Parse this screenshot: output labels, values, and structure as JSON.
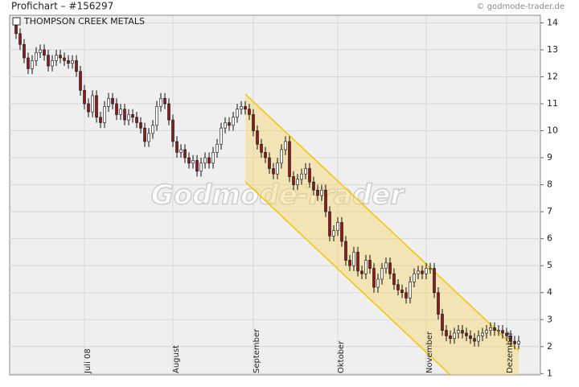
{
  "chart_data": {
    "type": "candlestick",
    "title": "Profichart – #156297",
    "source": "© godmode-trader.de",
    "watermark": "Godmode-Trader",
    "legend": "THOMPSON CREEK METALS",
    "up_color": "#ffffff",
    "down_color": "#8b1a1a",
    "ylim": [
      0.95,
      14.25
    ],
    "yticks": [
      1,
      2,
      3,
      4,
      5,
      6,
      7,
      8,
      9,
      10,
      11,
      12,
      13,
      14
    ],
    "grid": true,
    "categories": [
      null,
      null,
      null,
      null,
      null,
      null,
      null,
      null,
      null,
      null,
      null,
      null,
      null,
      null,
      null,
      null,
      null,
      "Juli 08",
      null,
      null,
      null,
      null,
      null,
      null,
      null,
      null,
      null,
      null,
      null,
      null,
      null,
      null,
      null,
      null,
      null,
      null,
      null,
      null,
      null,
      "August",
      null,
      null,
      null,
      null,
      null,
      null,
      null,
      null,
      null,
      null,
      null,
      null,
      null,
      null,
      null,
      null,
      null,
      null,
      null,
      "September",
      null,
      null,
      null,
      null,
      null,
      null,
      null,
      null,
      null,
      null,
      null,
      null,
      null,
      null,
      null,
      null,
      null,
      null,
      null,
      null,
      "Oktober",
      null,
      null,
      null,
      null,
      null,
      null,
      null,
      null,
      null,
      null,
      null,
      null,
      null,
      null,
      null,
      null,
      null,
      null,
      null,
      null,
      null,
      "November",
      null,
      null,
      null,
      null,
      null,
      null,
      null,
      null,
      null,
      null,
      null,
      null,
      null,
      null,
      null,
      null,
      null,
      null,
      null,
      "Dezember",
      null,
      null,
      null
    ],
    "ohlc": [
      [
        13.9,
        14.1,
        13.4,
        13.6
      ],
      [
        13.6,
        13.8,
        13.0,
        13.2
      ],
      [
        13.2,
        13.4,
        12.5,
        12.7
      ],
      [
        12.7,
        12.9,
        12.1,
        12.3
      ],
      [
        12.3,
        12.8,
        12.1,
        12.6
      ],
      [
        12.6,
        13.1,
        12.4,
        12.9
      ],
      [
        12.9,
        13.2,
        12.7,
        13.0
      ],
      [
        13.0,
        13.2,
        12.6,
        12.8
      ],
      [
        12.8,
        13.0,
        12.2,
        12.4
      ],
      [
        12.4,
        12.8,
        12.2,
        12.6
      ],
      [
        12.6,
        13.0,
        12.4,
        12.8
      ],
      [
        12.8,
        13.0,
        12.5,
        12.7
      ],
      [
        12.7,
        12.9,
        12.4,
        12.6
      ],
      [
        12.6,
        12.8,
        12.3,
        12.5
      ],
      [
        12.5,
        12.8,
        12.3,
        12.6
      ],
      [
        12.6,
        12.8,
        12.0,
        12.2
      ],
      [
        12.2,
        12.4,
        11.3,
        11.5
      ],
      [
        11.5,
        11.7,
        10.8,
        11.0
      ],
      [
        11.0,
        11.2,
        10.5,
        10.7
      ],
      [
        10.7,
        11.5,
        10.5,
        11.3
      ],
      [
        11.3,
        11.5,
        10.3,
        10.5
      ],
      [
        10.5,
        10.7,
        10.1,
        10.3
      ],
      [
        10.3,
        11.1,
        10.1,
        10.9
      ],
      [
        10.9,
        11.4,
        10.7,
        11.2
      ],
      [
        11.2,
        11.4,
        10.8,
        11.0
      ],
      [
        11.0,
        11.2,
        10.4,
        10.6
      ],
      [
        10.6,
        11.0,
        10.4,
        10.8
      ],
      [
        10.8,
        11.0,
        10.2,
        10.4
      ],
      [
        10.4,
        10.8,
        10.2,
        10.6
      ],
      [
        10.6,
        10.8,
        10.3,
        10.5
      ],
      [
        10.5,
        10.7,
        10.1,
        10.3
      ],
      [
        10.3,
        10.5,
        9.9,
        10.1
      ],
      [
        10.1,
        10.3,
        9.4,
        9.6
      ],
      [
        9.6,
        10.1,
        9.4,
        9.9
      ],
      [
        9.9,
        10.4,
        9.7,
        10.2
      ],
      [
        10.2,
        11.1,
        10.0,
        10.9
      ],
      [
        10.9,
        11.4,
        10.7,
        11.2
      ],
      [
        11.2,
        11.4,
        10.8,
        11.0
      ],
      [
        11.0,
        11.2,
        10.2,
        10.4
      ],
      [
        10.4,
        10.6,
        9.4,
        9.6
      ],
      [
        9.6,
        9.8,
        9.0,
        9.2
      ],
      [
        9.2,
        9.5,
        9.0,
        9.3
      ],
      [
        9.3,
        9.5,
        8.8,
        9.0
      ],
      [
        9.0,
        9.2,
        8.6,
        8.8
      ],
      [
        8.8,
        9.1,
        8.6,
        8.9
      ],
      [
        8.9,
        9.1,
        8.3,
        8.5
      ],
      [
        8.5,
        9.0,
        8.3,
        8.8
      ],
      [
        8.8,
        9.2,
        8.6,
        9.0
      ],
      [
        9.0,
        9.2,
        8.6,
        8.8
      ],
      [
        8.8,
        9.4,
        8.6,
        9.2
      ],
      [
        9.2,
        9.7,
        9.0,
        9.5
      ],
      [
        9.5,
        10.3,
        9.3,
        10.1
      ],
      [
        10.1,
        10.5,
        9.9,
        10.3
      ],
      [
        10.3,
        10.5,
        10.0,
        10.2
      ],
      [
        10.2,
        10.7,
        10.0,
        10.5
      ],
      [
        10.5,
        11.0,
        10.3,
        10.8
      ],
      [
        10.8,
        11.1,
        10.6,
        10.9
      ],
      [
        10.9,
        11.1,
        10.6,
        10.8
      ],
      [
        10.8,
        11.0,
        10.4,
        10.6
      ],
      [
        10.6,
        10.8,
        9.8,
        10.0
      ],
      [
        10.0,
        10.2,
        9.3,
        9.5
      ],
      [
        9.5,
        9.7,
        9.0,
        9.2
      ],
      [
        9.2,
        9.4,
        8.8,
        9.0
      ],
      [
        9.0,
        9.2,
        8.4,
        8.6
      ],
      [
        8.6,
        8.8,
        8.2,
        8.4
      ],
      [
        8.4,
        9.0,
        8.2,
        8.8
      ],
      [
        8.8,
        9.5,
        8.6,
        9.3
      ],
      [
        9.3,
        9.8,
        9.1,
        9.6
      ],
      [
        9.6,
        9.8,
        8.1,
        8.3
      ],
      [
        8.3,
        8.5,
        7.8,
        8.0
      ],
      [
        8.0,
        8.4,
        7.8,
        8.2
      ],
      [
        8.2,
        8.6,
        8.0,
        8.4
      ],
      [
        8.4,
        8.8,
        8.2,
        8.6
      ],
      [
        8.6,
        8.8,
        7.9,
        8.1
      ],
      [
        8.1,
        8.3,
        7.6,
        7.8
      ],
      [
        7.8,
        8.0,
        7.4,
        7.6
      ],
      [
        7.6,
        8.0,
        7.4,
        7.8
      ],
      [
        7.8,
        8.0,
        6.8,
        7.0
      ],
      [
        7.0,
        7.2,
        5.9,
        6.1
      ],
      [
        6.1,
        6.5,
        5.9,
        6.3
      ],
      [
        6.3,
        6.8,
        6.1,
        6.6
      ],
      [
        6.6,
        6.8,
        5.7,
        5.9
      ],
      [
        5.9,
        6.1,
        5.0,
        5.2
      ],
      [
        5.2,
        5.4,
        4.8,
        5.0
      ],
      [
        5.0,
        5.7,
        4.8,
        5.5
      ],
      [
        5.5,
        5.7,
        4.6,
        4.8
      ],
      [
        4.8,
        5.0,
        4.5,
        4.7
      ],
      [
        4.7,
        5.4,
        4.5,
        5.2
      ],
      [
        5.2,
        5.4,
        4.7,
        4.9
      ],
      [
        4.9,
        5.1,
        4.0,
        4.2
      ],
      [
        4.2,
        4.7,
        4.0,
        4.5
      ],
      [
        4.5,
        5.1,
        4.3,
        4.9
      ],
      [
        4.9,
        5.3,
        4.7,
        5.1
      ],
      [
        5.1,
        5.3,
        4.5,
        4.7
      ],
      [
        4.7,
        4.9,
        4.1,
        4.3
      ],
      [
        4.3,
        4.5,
        3.9,
        4.1
      ],
      [
        4.1,
        4.3,
        3.8,
        4.0
      ],
      [
        4.0,
        4.2,
        3.6,
        3.8
      ],
      [
        3.8,
        4.6,
        3.6,
        4.4
      ],
      [
        4.4,
        4.9,
        4.2,
        4.7
      ],
      [
        4.7,
        5.0,
        4.5,
        4.8
      ],
      [
        4.8,
        5.0,
        4.5,
        4.7
      ],
      [
        4.7,
        5.1,
        4.5,
        4.9
      ],
      [
        4.9,
        5.1,
        4.7,
        4.9
      ],
      [
        4.9,
        5.1,
        3.8,
        4.0
      ],
      [
        4.0,
        4.2,
        3.0,
        3.2
      ],
      [
        3.2,
        3.4,
        2.4,
        2.6
      ],
      [
        2.6,
        2.8,
        2.2,
        2.4
      ],
      [
        2.4,
        2.6,
        2.1,
        2.3
      ],
      [
        2.3,
        2.7,
        2.1,
        2.5
      ],
      [
        2.5,
        2.8,
        2.3,
        2.6
      ],
      [
        2.6,
        2.8,
        2.3,
        2.5
      ],
      [
        2.5,
        2.7,
        2.2,
        2.4
      ],
      [
        2.4,
        2.6,
        2.1,
        2.3
      ],
      [
        2.3,
        2.5,
        2.0,
        2.2
      ],
      [
        2.2,
        2.6,
        2.0,
        2.4
      ],
      [
        2.4,
        2.7,
        2.2,
        2.5
      ],
      [
        2.5,
        2.8,
        2.3,
        2.6
      ],
      [
        2.6,
        2.9,
        2.4,
        2.7
      ],
      [
        2.7,
        2.9,
        2.4,
        2.6
      ],
      [
        2.6,
        2.8,
        2.4,
        2.6
      ],
      [
        2.6,
        2.8,
        2.3,
        2.5
      ],
      [
        2.5,
        2.7,
        2.2,
        2.4
      ],
      [
        2.4,
        2.6,
        2.0,
        2.2
      ],
      [
        2.2,
        2.4,
        1.9,
        2.1
      ],
      [
        2.1,
        2.4,
        1.9,
        2.2
      ]
    ]
  }
}
